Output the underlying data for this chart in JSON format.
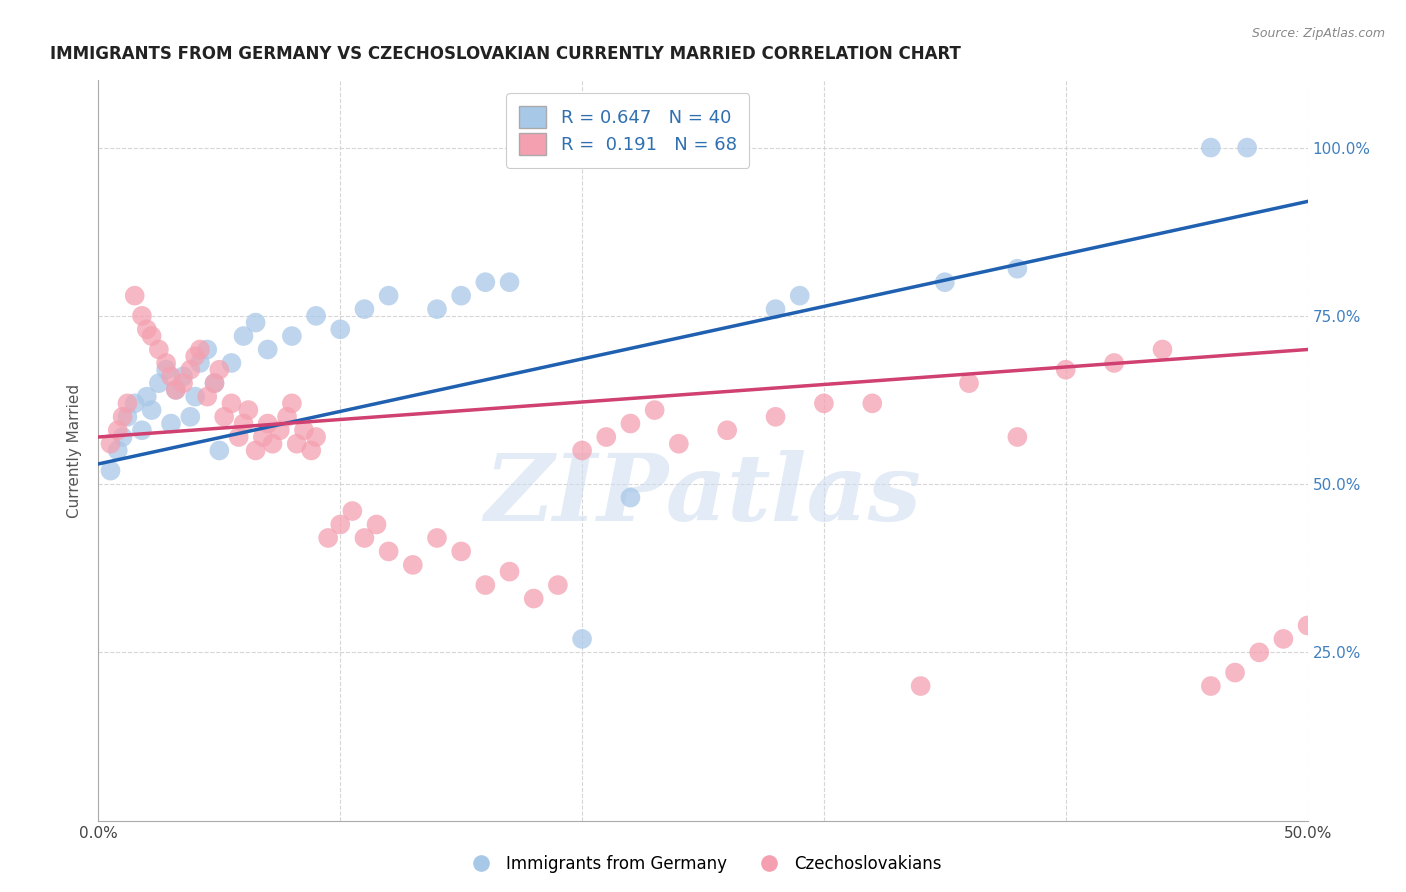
{
  "title": "IMMIGRANTS FROM GERMANY VS CZECHOSLOVAKIAN CURRENTLY MARRIED CORRELATION CHART",
  "source": "Source: ZipAtlas.com",
  "ylabel": "Currently Married",
  "xlim": [
    0.0,
    0.5
  ],
  "ylim": [
    0.0,
    1.1
  ],
  "legend_r_blue": "0.647",
  "legend_n_blue": "40",
  "legend_r_pink": "0.191",
  "legend_n_pink": "68",
  "blue_color": "#a8c8e8",
  "pink_color": "#f4a0b0",
  "blue_line_color": "#2060b0",
  "pink_line_color": "#d04070",
  "blue_scatter": [
    [
      0.005,
      0.52
    ],
    [
      0.008,
      0.55
    ],
    [
      0.01,
      0.57
    ],
    [
      0.012,
      0.6
    ],
    [
      0.015,
      0.62
    ],
    [
      0.018,
      0.58
    ],
    [
      0.02,
      0.63
    ],
    [
      0.022,
      0.61
    ],
    [
      0.025,
      0.65
    ],
    [
      0.028,
      0.67
    ],
    [
      0.03,
      0.59
    ],
    [
      0.032,
      0.64
    ],
    [
      0.035,
      0.66
    ],
    [
      0.038,
      0.6
    ],
    [
      0.04,
      0.63
    ],
    [
      0.042,
      0.68
    ],
    [
      0.045,
      0.7
    ],
    [
      0.048,
      0.65
    ],
    [
      0.05,
      0.55
    ],
    [
      0.055,
      0.68
    ],
    [
      0.06,
      0.72
    ],
    [
      0.065,
      0.74
    ],
    [
      0.07,
      0.7
    ],
    [
      0.08,
      0.72
    ],
    [
      0.09,
      0.75
    ],
    [
      0.1,
      0.73
    ],
    [
      0.11,
      0.76
    ],
    [
      0.12,
      0.78
    ],
    [
      0.14,
      0.76
    ],
    [
      0.15,
      0.78
    ],
    [
      0.16,
      0.8
    ],
    [
      0.17,
      0.8
    ],
    [
      0.2,
      0.27
    ],
    [
      0.22,
      0.48
    ],
    [
      0.28,
      0.76
    ],
    [
      0.29,
      0.78
    ],
    [
      0.35,
      0.8
    ],
    [
      0.38,
      0.82
    ],
    [
      0.46,
      1.0
    ],
    [
      0.475,
      1.0
    ]
  ],
  "pink_scatter": [
    [
      0.005,
      0.56
    ],
    [
      0.008,
      0.58
    ],
    [
      0.01,
      0.6
    ],
    [
      0.012,
      0.62
    ],
    [
      0.015,
      0.78
    ],
    [
      0.018,
      0.75
    ],
    [
      0.02,
      0.73
    ],
    [
      0.022,
      0.72
    ],
    [
      0.025,
      0.7
    ],
    [
      0.028,
      0.68
    ],
    [
      0.03,
      0.66
    ],
    [
      0.032,
      0.64
    ],
    [
      0.035,
      0.65
    ],
    [
      0.038,
      0.67
    ],
    [
      0.04,
      0.69
    ],
    [
      0.042,
      0.7
    ],
    [
      0.045,
      0.63
    ],
    [
      0.048,
      0.65
    ],
    [
      0.05,
      0.67
    ],
    [
      0.052,
      0.6
    ],
    [
      0.055,
      0.62
    ],
    [
      0.058,
      0.57
    ],
    [
      0.06,
      0.59
    ],
    [
      0.062,
      0.61
    ],
    [
      0.065,
      0.55
    ],
    [
      0.068,
      0.57
    ],
    [
      0.07,
      0.59
    ],
    [
      0.072,
      0.56
    ],
    [
      0.075,
      0.58
    ],
    [
      0.078,
      0.6
    ],
    [
      0.08,
      0.62
    ],
    [
      0.082,
      0.56
    ],
    [
      0.085,
      0.58
    ],
    [
      0.088,
      0.55
    ],
    [
      0.09,
      0.57
    ],
    [
      0.095,
      0.42
    ],
    [
      0.1,
      0.44
    ],
    [
      0.105,
      0.46
    ],
    [
      0.11,
      0.42
    ],
    [
      0.115,
      0.44
    ],
    [
      0.12,
      0.4
    ],
    [
      0.13,
      0.38
    ],
    [
      0.14,
      0.42
    ],
    [
      0.15,
      0.4
    ],
    [
      0.16,
      0.35
    ],
    [
      0.17,
      0.37
    ],
    [
      0.18,
      0.33
    ],
    [
      0.19,
      0.35
    ],
    [
      0.2,
      0.55
    ],
    [
      0.21,
      0.57
    ],
    [
      0.22,
      0.59
    ],
    [
      0.23,
      0.61
    ],
    [
      0.24,
      0.56
    ],
    [
      0.26,
      0.58
    ],
    [
      0.28,
      0.6
    ],
    [
      0.3,
      0.62
    ],
    [
      0.32,
      0.62
    ],
    [
      0.34,
      0.2
    ],
    [
      0.36,
      0.65
    ],
    [
      0.38,
      0.57
    ],
    [
      0.4,
      0.67
    ],
    [
      0.42,
      0.68
    ],
    [
      0.44,
      0.7
    ],
    [
      0.46,
      0.2
    ],
    [
      0.47,
      0.22
    ],
    [
      0.48,
      0.25
    ],
    [
      0.49,
      0.27
    ],
    [
      0.5,
      0.29
    ]
  ],
  "watermark": "ZIPatlas",
  "title_fontsize": 12,
  "axis_fontsize": 11,
  "tick_fontsize": 11
}
